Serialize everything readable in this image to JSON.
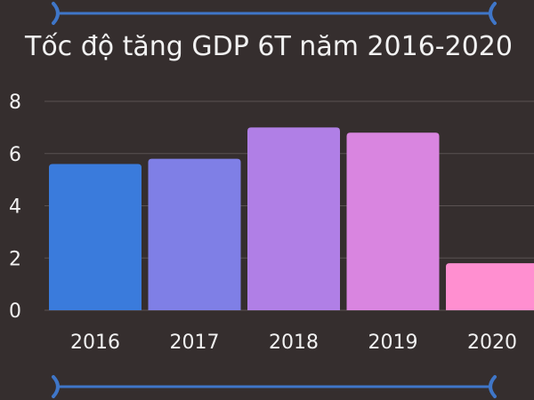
{
  "chart_data": {
    "type": "bar",
    "title": "Tốc độ tăng GDP 6T năm 2016-2020",
    "xlabel": "",
    "ylabel": "",
    "categories": [
      "2016",
      "2017",
      "2018",
      "2019",
      "2020"
    ],
    "values": [
      5.6,
      5.8,
      7.0,
      6.8,
      1.8
    ],
    "ylim": [
      0,
      8
    ],
    "yticks": [
      "0",
      "2",
      "4",
      "6",
      "8"
    ],
    "grid": true,
    "legend": "none",
    "colors": [
      "#3a7bdc",
      "#7f7fe6",
      "#b07fe6",
      "#d985e0",
      "#ff8fd0"
    ]
  }
}
